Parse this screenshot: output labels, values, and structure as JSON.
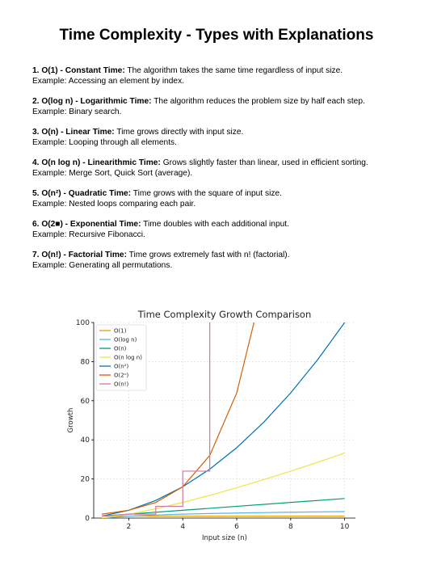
{
  "document": {
    "title": "Time Complexity - Types with Explanations",
    "items": [
      {
        "heading": "1. O(1) - Constant Time:",
        "text": " The algorithm takes the same time regardless of input size.",
        "example": "Example: Accessing an element by index."
      },
      {
        "heading": "2. O(log n) - Logarithmic Time:",
        "text": " The algorithm reduces the problem size by half each step.",
        "example": "Example: Binary search."
      },
      {
        "heading": "3. O(n) - Linear Time:",
        "text": " Time grows directly with input size.",
        "example": "Example: Looping through all elements."
      },
      {
        "heading": "4. O(n log n) - Linearithmic Time:",
        "text": " Grows slightly faster than linear, used in efficient sorting.",
        "example": "Example: Merge Sort, Quick Sort (average)."
      },
      {
        "heading": "5. O(n²) - Quadratic Time:",
        "text": " Time grows with the square of input size.",
        "example": "Example: Nested loops comparing each pair."
      },
      {
        "heading": "6. O(2■) - Exponential Time:",
        "text": " Time doubles with each additional input.",
        "example": "Example: Recursive Fibonacci."
      },
      {
        "heading": "7. O(n!) - Factorial Time:",
        "text": " Time grows extremely fast with n! (factorial).",
        "example": "Example: Generating all permutations."
      }
    ]
  },
  "chart_data": {
    "type": "line",
    "title": "Time Complexity Growth Comparison",
    "xlabel": "Input size (n)",
    "ylabel": "Growth",
    "xlim": [
      0.7,
      10.4
    ],
    "ylim": [
      0,
      100
    ],
    "xticks": [
      2,
      4,
      6,
      8,
      10
    ],
    "yticks": [
      0,
      20,
      40,
      60,
      80,
      100
    ],
    "grid": true,
    "legend_position": "top-left",
    "series": [
      {
        "name": "O(1)",
        "color": "#E69F00",
        "x": [
          1,
          10
        ],
        "y": [
          1,
          1
        ]
      },
      {
        "name": "O(log n)",
        "color": "#56B4E9",
        "x": [
          1,
          2,
          3,
          4,
          5,
          6,
          7,
          8,
          9,
          10
        ],
        "y": [
          0,
          1,
          1.58,
          2,
          2.32,
          2.58,
          2.81,
          3,
          3.17,
          3.32
        ]
      },
      {
        "name": "O(n)",
        "color": "#009E73",
        "x": [
          1,
          10
        ],
        "y": [
          1,
          10
        ]
      },
      {
        "name": "O(n log n)",
        "color": "#F0E442",
        "x": [
          1,
          2,
          3,
          4,
          5,
          6,
          7,
          8,
          9,
          10
        ],
        "y": [
          0,
          2,
          4.75,
          8,
          11.61,
          15.51,
          19.65,
          24,
          28.53,
          33.22
        ]
      },
      {
        "name": "O(n²)",
        "color": "#0072B2",
        "x": [
          1,
          2,
          3,
          4,
          5,
          6,
          7,
          8,
          9,
          10
        ],
        "y": [
          1,
          4,
          9,
          16,
          25,
          36,
          49,
          64,
          81,
          100
        ]
      },
      {
        "name": "O(2ⁿ)",
        "color": "#D55E00",
        "x": [
          1,
          2,
          3,
          4,
          5,
          6,
          6.64
        ],
        "y": [
          2,
          4,
          8,
          16,
          32,
          64,
          100
        ]
      },
      {
        "name": "O(n!)",
        "color": "#CC79A7",
        "x": [
          1,
          2,
          3,
          3,
          4,
          4,
          5,
          5
        ],
        "y": [
          1,
          2,
          2,
          6,
          6,
          24,
          24,
          100
        ]
      }
    ]
  }
}
